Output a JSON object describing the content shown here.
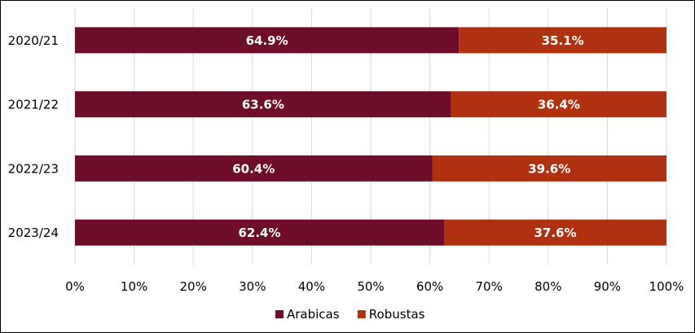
{
  "chart_data": {
    "type": "bar",
    "orientation": "horizontal",
    "stacked": true,
    "categories": [
      "2020/21",
      "2021/22",
      "2022/23",
      "2023/24"
    ],
    "series": [
      {
        "name": "Arabicas",
        "values": [
          64.9,
          63.6,
          60.4,
          62.4
        ],
        "labels": [
          "64.9%",
          "63.6%",
          "60.4%",
          "62.4%"
        ],
        "color": "#6d0d27"
      },
      {
        "name": "Robustas",
        "values": [
          35.1,
          36.4,
          39.6,
          37.6
        ],
        "labels": [
          "35.1%",
          "36.4%",
          "39.6%",
          "37.6%"
        ],
        "color": "#b0310f"
      }
    ],
    "xlim": [
      0,
      100
    ],
    "xticks": [
      "0%",
      "10%",
      "20%",
      "30%",
      "40%",
      "50%",
      "60%",
      "70%",
      "80%",
      "90%",
      "100%"
    ],
    "grid": true,
    "legend": "bottom",
    "title": "",
    "xlabel": "",
    "ylabel": ""
  }
}
